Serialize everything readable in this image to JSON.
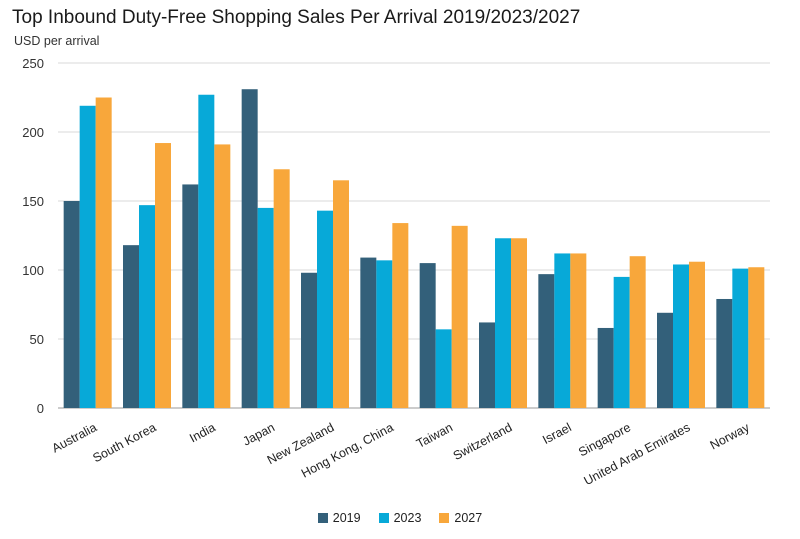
{
  "chart_data": {
    "type": "bar",
    "title": "Top Inbound Duty-Free Shopping Sales Per Arrival 2019/2023/2027",
    "ylabel": "USD per arrival",
    "ylim": [
      0,
      250
    ],
    "yticks": [
      0,
      50,
      100,
      150,
      200,
      250
    ],
    "grid": true,
    "legend_position": "bottom",
    "categories": [
      "Australia",
      "South Korea",
      "India",
      "Japan",
      "New Zealand",
      "Hong Kong, China",
      "Taiwan",
      "Switzerland",
      "Israel",
      "Singapore",
      "United Arab Emirates",
      "Norway"
    ],
    "series": [
      {
        "name": "2019",
        "color": "#33607a",
        "values": [
          150,
          118,
          162,
          231,
          98,
          109,
          105,
          62,
          97,
          58,
          69,
          79
        ]
      },
      {
        "name": "2023",
        "color": "#07a9d8",
        "values": [
          219,
          147,
          227,
          145,
          143,
          107,
          57,
          123,
          112,
          95,
          104,
          101
        ]
      },
      {
        "name": "2027",
        "color": "#f8a73b",
        "values": [
          225,
          192,
          191,
          173,
          165,
          134,
          132,
          123,
          112,
          110,
          106,
          102
        ]
      }
    ]
  }
}
